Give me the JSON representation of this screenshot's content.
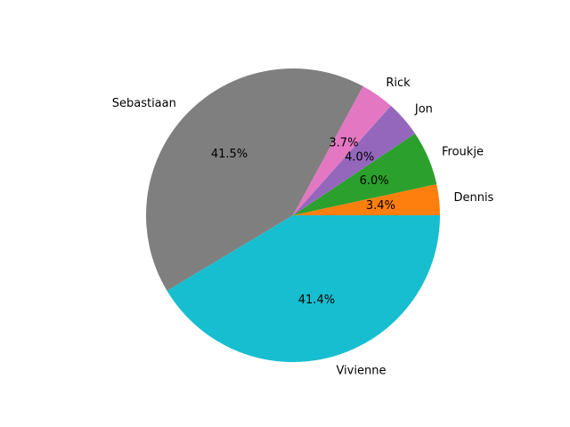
{
  "chart_data": {
    "type": "pie",
    "start_angle_deg": 0,
    "direction": "counterclockwise",
    "slices": [
      {
        "label": "Dennis",
        "percent": 3.4,
        "pct_text": "3.4%",
        "color": "#ff7f0e"
      },
      {
        "label": "Froukje",
        "percent": 6.0,
        "pct_text": "6.0%",
        "color": "#2ca02c"
      },
      {
        "label": "Jon",
        "percent": 4.0,
        "pct_text": "4.0%",
        "color": "#9467bd"
      },
      {
        "label": "Rick",
        "percent": 3.7,
        "pct_text": "3.7%",
        "color": "#e377c2"
      },
      {
        "label": "Sebastiaan",
        "percent": 41.5,
        "pct_text": "41.5%",
        "color": "#7f7f7f"
      },
      {
        "label": "Vivienne",
        "percent": 41.4,
        "pct_text": "41.4%",
        "color": "#17becf"
      }
    ]
  }
}
